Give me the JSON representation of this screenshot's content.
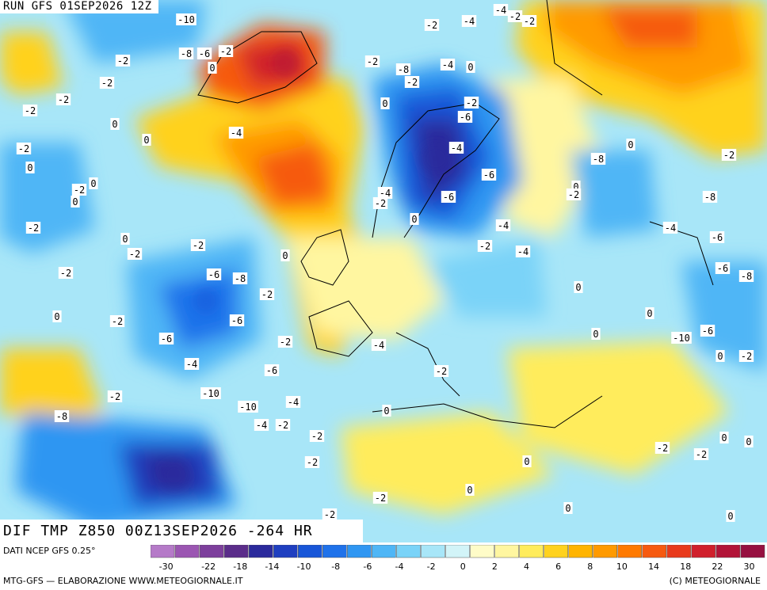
{
  "header": {
    "run_label": "RUN GFS 01SEP2026 12Z"
  },
  "map": {
    "field_title": "DIF TMP Z850 00Z13SEP2026 -264 HR",
    "contour_labels": [
      "-10",
      "-8",
      "-6",
      "-2",
      "0",
      "-2",
      "-2",
      "-2",
      "-2",
      "0",
      "0",
      "-4",
      "-2",
      "0",
      "-2",
      "0",
      "0",
      "-2",
      "0",
      "-2",
      "-2",
      "-6",
      "-2",
      "0",
      "-2",
      "0",
      "-6",
      "-2",
      "-4",
      "-2",
      "-8",
      "-6",
      "-10",
      "-8",
      "-10",
      "-6",
      "-4",
      "-4",
      "-2",
      "-2",
      "-4",
      "-2",
      "0",
      "-2",
      "-2",
      "0",
      "-2",
      "-2",
      "-2",
      "-4",
      "-8",
      "-4",
      "-2",
      "0",
      "-6",
      "-4",
      "-2",
      "-4",
      "-6",
      "0",
      "-2",
      "-2",
      "-4",
      "-2",
      "0",
      "-4",
      "0",
      "-2",
      "0",
      "-2",
      "0",
      "-6",
      "-2",
      "-4",
      "0",
      "0",
      "0",
      "0",
      "-8",
      "-8",
      "-4",
      "-6",
      "-6",
      "-8",
      "-10",
      "-6",
      "0",
      "-2",
      "-2",
      "0",
      "0",
      "-2",
      "0",
      "0",
      "-2",
      "-2",
      "0"
    ]
  },
  "legend": {
    "data_source": "DATI NCEP GFS 0.25°",
    "tick_labels": [
      "-30",
      "-22",
      "-18",
      "-14",
      "-10",
      "-8",
      "-6",
      "-4",
      "-2",
      "0",
      "2",
      "4",
      "6",
      "8",
      "10",
      "14",
      "18",
      "22",
      "30"
    ],
    "colors": [
      "#b57ac8",
      "#9b56b2",
      "#7d3f9c",
      "#5b2d8a",
      "#2b2a9c",
      "#1f3fc0",
      "#1856d8",
      "#1f72ea",
      "#2f96f2",
      "#4fb6f6",
      "#7ad3f8",
      "#a8e6f8",
      "#d2f4f8",
      "#fffcc8",
      "#fff6a0",
      "#ffec5c",
      "#ffd21e",
      "#ffb400",
      "#ff9a00",
      "#ff7a00",
      "#f65a10",
      "#e83a1c",
      "#d0202c",
      "#b21438",
      "#961040"
    ]
  },
  "footer": {
    "credit_left": "MTG-GFS — ELABORAZIONE WWW.METEOGIORNALE.IT",
    "credit_right": "(C) METEOGIORNALE"
  }
}
